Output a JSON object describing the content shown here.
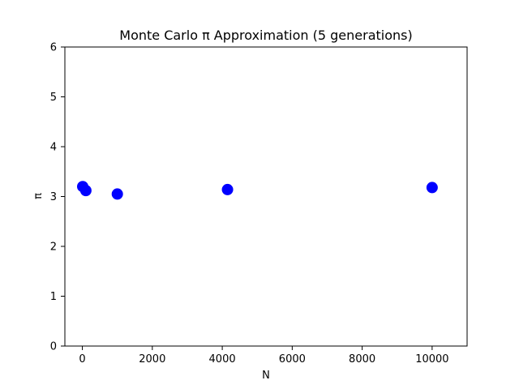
{
  "chart_data": {
    "type": "scatter",
    "title": "Monte Carlo π Approximation (5 generations)",
    "xlabel": "N",
    "ylabel": "π",
    "xlim": [
      -500,
      11000
    ],
    "ylim": [
      0,
      6
    ],
    "xticks": [
      0,
      2000,
      4000,
      6000,
      8000,
      10000
    ],
    "yticks": [
      0,
      1,
      2,
      3,
      4,
      5,
      6
    ],
    "grid": false,
    "legend": "none",
    "marker_color": "#0000ff",
    "series": [
      {
        "x": [
          10,
          100,
          1000,
          4150,
          10000
        ],
        "y": [
          3.2,
          3.12,
          3.05,
          3.14,
          3.18
        ]
      }
    ]
  }
}
